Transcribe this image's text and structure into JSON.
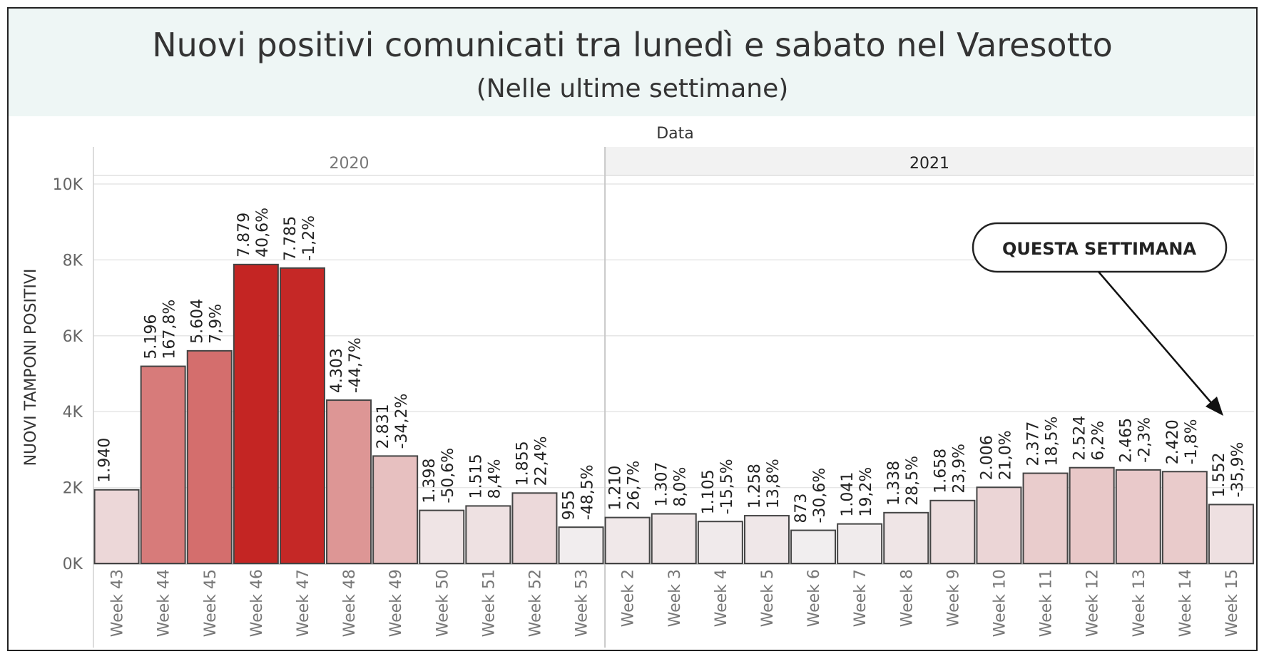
{
  "header": {
    "title": "Nuovi positivi comunicati tra lunedì e sabato nel Varesotto",
    "subtitle": "(Nelle ultime settimane)"
  },
  "annotation": {
    "text": "QUESTA SETTIMANA"
  },
  "colors": {
    "bar_low": "#f1eeef",
    "bar_high": "#c42523",
    "bar_stroke": "#444444",
    "grid": "#e6e6e6",
    "header_bg": "#eef6f5"
  },
  "chart_data": {
    "type": "bar",
    "column_header": "Data",
    "xlabel": "",
    "ylabel": "NUOVI TAMPONI POSITIVI",
    "ylim": [
      0,
      10000
    ],
    "yticks": [
      "0K",
      "2K",
      "4K",
      "6K",
      "8K",
      "10K"
    ],
    "grid": true,
    "groups": [
      {
        "name": "2020",
        "categories": [
          "Week 43",
          "Week 44",
          "Week 45",
          "Week 46",
          "Week 47",
          "Week 48",
          "Week 49",
          "Week 50",
          "Week 51",
          "Week 52",
          "Week 53"
        ],
        "values": [
          1940,
          5196,
          5604,
          7879,
          7785,
          4303,
          2831,
          1398,
          1515,
          1855,
          955
        ],
        "value_labels": [
          "1.940",
          "5.196",
          "5.604",
          "7.879",
          "7.785",
          "4.303",
          "2.831",
          "1.398",
          "1.515",
          "1.855",
          "955"
        ],
        "change_labels": [
          "",
          "167,8%",
          "7,9%",
          "40,6%",
          "-1,2%",
          "-44,7%",
          "-34,2%",
          "-50,6%",
          "8,4%",
          "22,4%",
          "-48,5%"
        ]
      },
      {
        "name": "2021",
        "categories": [
          "Week 2",
          "Week 3",
          "Week 4",
          "Week 5",
          "Week 6",
          "Week 7",
          "Week 8",
          "Week 9",
          "Week 10",
          "Week 11",
          "Week 12",
          "Week 13",
          "Week 14",
          "Week 15"
        ],
        "values": [
          1210,
          1307,
          1105,
          1258,
          873,
          1041,
          1338,
          1658,
          2006,
          2377,
          2524,
          2465,
          2420,
          1552
        ],
        "value_labels": [
          "1.210",
          "1.307",
          "1.105",
          "1.258",
          "873",
          "1.041",
          "1.338",
          "1.658",
          "2.006",
          "2.377",
          "2.524",
          "2.465",
          "2.420",
          "1.552"
        ],
        "change_labels": [
          "26,7%",
          "8,0%",
          "-15,5%",
          "13,8%",
          "-30,6%",
          "19,2%",
          "28,5%",
          "23,9%",
          "21,0%",
          "18,5%",
          "6,2%",
          "-2,3%",
          "-1,8%",
          "-35,9%"
        ]
      }
    ]
  }
}
